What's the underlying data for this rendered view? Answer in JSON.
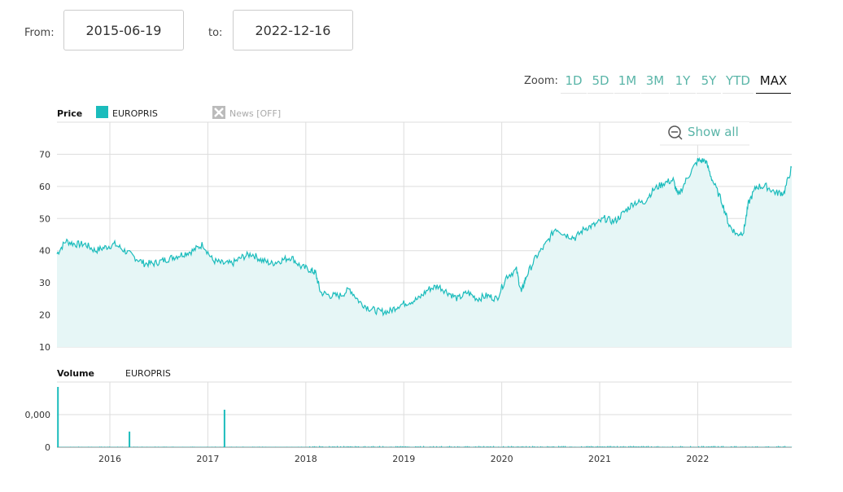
{
  "range": {
    "from_label": "From:",
    "from_value": "2015-06-19",
    "to_label": "to:",
    "to_value": "2022-12-16"
  },
  "zoom": {
    "label": "Zoom:",
    "buttons": [
      "1D",
      "5D",
      "1M",
      "3M",
      "1Y",
      "5Y",
      "YTD",
      "MAX"
    ],
    "active": "MAX"
  },
  "show_all": "Show all",
  "legend": {
    "price_title": "Price",
    "series_name": "EUROPRIS",
    "news": "News [OFF]",
    "volume_title": "Volume",
    "volume_series": "EUROPRIS"
  },
  "colors": {
    "series": "#1bbcbc",
    "fill": "#e6f6f6",
    "accent": "#5ab5a8"
  },
  "chart_data": [
    {
      "type": "area",
      "title": "Price",
      "series_name": "EUROPRIS",
      "x_ticks": [
        "2016",
        "2017",
        "2018",
        "2019",
        "2020",
        "2021",
        "2022"
      ],
      "x_tick_values": [
        2016,
        2017,
        2018,
        2019,
        2020,
        2021,
        2022
      ],
      "xlim": [
        2015.46,
        2022.96
      ],
      "y_ticks": [
        "10",
        "20",
        "30",
        "40",
        "50",
        "60",
        "70"
      ],
      "y_tick_values": [
        10,
        20,
        30,
        40,
        50,
        60,
        70
      ],
      "ylim": [
        10,
        80
      ],
      "x": [
        2015.46,
        2015.55,
        2015.65,
        2015.75,
        2015.85,
        2015.95,
        2016.05,
        2016.15,
        2016.25,
        2016.35,
        2016.45,
        2016.55,
        2016.65,
        2016.75,
        2016.85,
        2016.95,
        2017.05,
        2017.15,
        2017.25,
        2017.35,
        2017.45,
        2017.55,
        2017.65,
        2017.75,
        2017.85,
        2017.95,
        2018.05,
        2018.1,
        2018.15,
        2018.25,
        2018.35,
        2018.45,
        2018.55,
        2018.65,
        2018.75,
        2018.85,
        2018.95,
        2019.05,
        2019.15,
        2019.25,
        2019.35,
        2019.45,
        2019.55,
        2019.65,
        2019.75,
        2019.85,
        2019.95,
        2020.05,
        2020.15,
        2020.2,
        2020.25,
        2020.35,
        2020.45,
        2020.55,
        2020.65,
        2020.75,
        2020.85,
        2020.95,
        2021.05,
        2021.15,
        2021.25,
        2021.35,
        2021.45,
        2021.55,
        2021.65,
        2021.75,
        2021.8,
        2021.9,
        2022.0,
        2022.08,
        2022.15,
        2022.25,
        2022.32,
        2022.4,
        2022.47,
        2022.52,
        2022.6,
        2022.7,
        2022.8,
        2022.88,
        2022.96
      ],
      "y": [
        39,
        43,
        42,
        42,
        40,
        41,
        42,
        40,
        38,
        36,
        36,
        37,
        38,
        39,
        40,
        42,
        37,
        36,
        36,
        38,
        39,
        37,
        36,
        37,
        38,
        35,
        34,
        33,
        27,
        26,
        26,
        28,
        24,
        22,
        21,
        21,
        23,
        24,
        25,
        28,
        29,
        27,
        25,
        27,
        25,
        26,
        25,
        32,
        34,
        27,
        32,
        38,
        42,
        47,
        45,
        44,
        47,
        48,
        50,
        49,
        52,
        55,
        55,
        59,
        61,
        62,
        57,
        63,
        68,
        68,
        62,
        55,
        48,
        45,
        46,
        55,
        60,
        60,
        58,
        58,
        66
      ]
    },
    {
      "type": "bar",
      "title": "Volume",
      "series_name": "EUROPRIS",
      "y_ticks": [
        "0",
        "0,000"
      ],
      "y_tick_values": [
        0,
        1
      ],
      "ylim": [
        0,
        2
      ],
      "spikes_x": [
        2015.47,
        2016.2,
        2017.17
      ],
      "spikes_y": [
        1.85,
        0.48,
        1.15
      ]
    }
  ]
}
